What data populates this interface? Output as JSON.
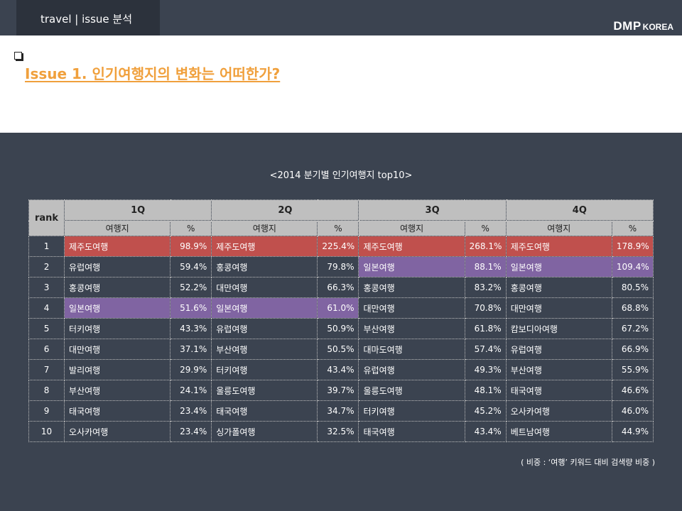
{
  "header": {
    "tab_label": "travel   | issue 분석",
    "brand_main": "DMP",
    "brand_sub": "KOREA"
  },
  "section": {
    "title": "Issue 1. 인기여행지의 변화는 어떠한가?"
  },
  "table": {
    "caption": "<2014 분기별 인기여행지 top10>",
    "rank_header": "rank",
    "quarters": [
      "1Q",
      "2Q",
      "3Q",
      "4Q"
    ],
    "sub_headers": {
      "place": "여행지",
      "pct": "%"
    },
    "highlight_colors": {
      "red": "#c0504d",
      "purple": "#8064a2"
    },
    "rows": [
      {
        "rank": "1",
        "cells": [
          {
            "place": "제주도여행",
            "pct": "98.9%",
            "hl": "red"
          },
          {
            "place": "제주도여행",
            "pct": "225.4%",
            "hl": "red"
          },
          {
            "place": "제주도여행",
            "pct": "268.1%",
            "hl": "red"
          },
          {
            "place": "제주도여행",
            "pct": "178.9%",
            "hl": "red"
          }
        ]
      },
      {
        "rank": "2",
        "cells": [
          {
            "place": "유럽여행",
            "pct": "59.4%",
            "hl": ""
          },
          {
            "place": "홍콩여행",
            "pct": "79.8%",
            "hl": ""
          },
          {
            "place": "일본여행",
            "pct": "88.1%",
            "hl": "purple"
          },
          {
            "place": "일본여행",
            "pct": "109.4%",
            "hl": "purple"
          }
        ]
      },
      {
        "rank": "3",
        "cells": [
          {
            "place": "홍콩여행",
            "pct": "52.2%",
            "hl": ""
          },
          {
            "place": "대만여행",
            "pct": "66.3%",
            "hl": ""
          },
          {
            "place": "홍콩여행",
            "pct": "83.2%",
            "hl": ""
          },
          {
            "place": "홍콩여행",
            "pct": "80.5%",
            "hl": ""
          }
        ]
      },
      {
        "rank": "4",
        "cells": [
          {
            "place": "일본여행",
            "pct": "51.6%",
            "hl": "purple"
          },
          {
            "place": "일본여행",
            "pct": "61.0%",
            "hl": "purple"
          },
          {
            "place": "대만여행",
            "pct": "70.8%",
            "hl": ""
          },
          {
            "place": "대만여행",
            "pct": "68.8%",
            "hl": ""
          }
        ]
      },
      {
        "rank": "5",
        "cells": [
          {
            "place": "터키여행",
            "pct": "43.3%",
            "hl": ""
          },
          {
            "place": "유럽여행",
            "pct": "50.9%",
            "hl": ""
          },
          {
            "place": "부산여행",
            "pct": "61.8%",
            "hl": ""
          },
          {
            "place": "캄보디아여행",
            "pct": "67.2%",
            "hl": ""
          }
        ]
      },
      {
        "rank": "6",
        "cells": [
          {
            "place": "대만여행",
            "pct": "37.1%",
            "hl": ""
          },
          {
            "place": "부산여행",
            "pct": "50.5%",
            "hl": ""
          },
          {
            "place": "대마도여행",
            "pct": "57.4%",
            "hl": ""
          },
          {
            "place": "유럽여행",
            "pct": "66.9%",
            "hl": ""
          }
        ]
      },
      {
        "rank": "7",
        "cells": [
          {
            "place": "발리여행",
            "pct": "29.9%",
            "hl": ""
          },
          {
            "place": "터키여행",
            "pct": "43.4%",
            "hl": ""
          },
          {
            "place": "유럽여행",
            "pct": "49.3%",
            "hl": ""
          },
          {
            "place": "부산여행",
            "pct": "55.9%",
            "hl": ""
          }
        ]
      },
      {
        "rank": "8",
        "cells": [
          {
            "place": "부산여행",
            "pct": "24.1%",
            "hl": ""
          },
          {
            "place": "울릉도여행",
            "pct": "39.7%",
            "hl": ""
          },
          {
            "place": "울릉도여행",
            "pct": "48.1%",
            "hl": ""
          },
          {
            "place": "태국여행",
            "pct": "46.6%",
            "hl": ""
          }
        ]
      },
      {
        "rank": "9",
        "cells": [
          {
            "place": "태국여행",
            "pct": "23.4%",
            "hl": ""
          },
          {
            "place": "태국여행",
            "pct": "34.7%",
            "hl": ""
          },
          {
            "place": "터키여행",
            "pct": "45.2%",
            "hl": ""
          },
          {
            "place": "오사카여행",
            "pct": "46.0%",
            "hl": ""
          }
        ]
      },
      {
        "rank": "10",
        "cells": [
          {
            "place": "오사카여행",
            "pct": "23.4%",
            "hl": ""
          },
          {
            "place": "싱가폴여행",
            "pct": "32.5%",
            "hl": ""
          },
          {
            "place": "태국여행",
            "pct": "43.4%",
            "hl": ""
          },
          {
            "place": "베트남여행",
            "pct": "44.9%",
            "hl": ""
          }
        ]
      }
    ],
    "note": "( 비중 : ‘여행’ 키워드 대비 검색량 비중 )"
  }
}
